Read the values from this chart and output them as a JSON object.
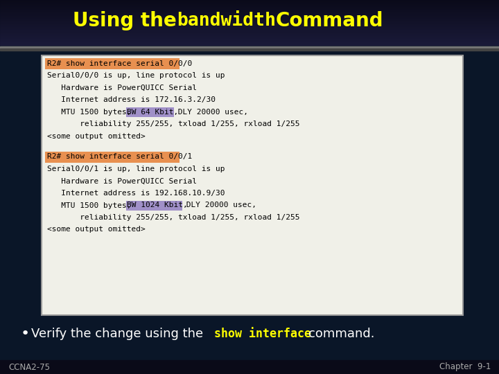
{
  "bg_color": "#0a1628",
  "header_color": "#1a1a2e",
  "box_bg": "#f0f0e8",
  "box_border": "#999999",
  "cmd_highlight": "#e89050",
  "bw_highlight": "#a090c8",
  "code_color": "#000000",
  "bullet_text_color": "#ffffff",
  "bullet_mono_color": "#ffff00",
  "footer_text_color": "#aaaaaa",
  "title_color": "#ffff00",
  "block1_cmd": "R2# show interface serial 0/0/0",
  "block1_lines": [
    "Serial0/0/0 is up, line protocol is up",
    "   Hardware is PowerQUICC Serial",
    "   Internet address is 172.16.3.2/30",
    "   MTU 1500 bytes, BW 64 Kbit, DLY 20000 usec,",
    "       reliability 255/255, txload 1/255, rxload 1/255",
    "<some output omitted>"
  ],
  "block1_bw_pre": "   MTU 1500 bytes, ",
  "block1_bw": "BW 64 Kbit,",
  "block1_bw_post": " DLY 20000 usec,",
  "block2_cmd": "R2# show interface serial 0/0/1",
  "block2_lines": [
    "Serial0/0/1 is up, line protocol is up",
    "   Hardware is PowerQUICC Serial",
    "   Internet address is 192.168.10.9/30",
    "   MTU 1500 bytes, BW 1024 Kbit, DLY 20000 usec,",
    "       reliability 255/255, txload 1/255, rxload 1/255",
    "<some output omitted>"
  ],
  "block2_bw_pre": "   MTU 1500 bytes, ",
  "block2_bw": "BW 1024 Kbit,",
  "block2_bw_post": " DLY 20000 usec,",
  "footer_left": "CCNA2-75",
  "footer_right": "Chapter  9-1"
}
